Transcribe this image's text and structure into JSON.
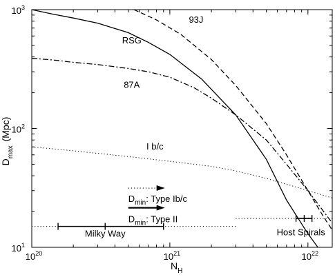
{
  "chart_data": {
    "type": "line",
    "xscale": "log",
    "yscale": "log",
    "xlim": [
      1e+20,
      1.5e+22
    ],
    "ylim": [
      10,
      1000
    ],
    "xlabel": "N",
    "xlabel_sub": "H",
    "ylabel_pre": "D",
    "ylabel_sub": "max",
    "ylabel_post": "(Mpc)",
    "x_ticks": [
      {
        "value": 1e+20,
        "base": "10",
        "exp": "20"
      },
      {
        "value": 1e+21,
        "base": "10",
        "exp": "21"
      },
      {
        "value": 1e+22,
        "base": "10",
        "exp": "22"
      }
    ],
    "y_ticks": [
      {
        "value": 10,
        "base": "10",
        "exp": "1"
      },
      {
        "value": 100,
        "base": "10",
        "exp": "2"
      },
      {
        "value": 1000,
        "base": "10",
        "exp": "3"
      }
    ],
    "series": [
      {
        "name": "RSG",
        "dash": "solid",
        "color": "#000000",
        "points": [
          [
            1e+20,
            1000
          ],
          [
            1.4e+20,
            920
          ],
          [
            2e+20,
            850
          ],
          [
            3e+20,
            770
          ],
          [
            5e+20,
            640
          ],
          [
            7e+20,
            530
          ],
          [
            1e+21,
            420
          ],
          [
            1.7e+21,
            260
          ],
          [
            3e+21,
            130
          ],
          [
            5e+21,
            55
          ],
          [
            7e+21,
            25
          ],
          [
            1e+22,
            13
          ],
          [
            1.18e+22,
            10
          ]
        ]
      },
      {
        "name": "93J",
        "dash": "dashed",
        "color": "#000000",
        "points": [
          [
            5.5e+20,
            1000
          ],
          [
            8e+20,
            820
          ],
          [
            1.2e+21,
            620
          ],
          [
            2e+21,
            380
          ],
          [
            3e+21,
            230
          ],
          [
            5e+21,
            110
          ],
          [
            7e+21,
            60
          ],
          [
            1e+22,
            30
          ],
          [
            1.3e+22,
            18
          ],
          [
            1.5e+22,
            14
          ]
        ]
      },
      {
        "name": "87A",
        "dash": "dashdot",
        "color": "#000000",
        "points": [
          [
            1e+20,
            390
          ],
          [
            1.5e+20,
            375
          ],
          [
            2e+20,
            360
          ],
          [
            3e+20,
            345
          ],
          [
            5e+20,
            320
          ],
          [
            7e+20,
            300
          ],
          [
            1e+21,
            270
          ],
          [
            1.5e+21,
            220
          ],
          [
            2e+21,
            180
          ],
          [
            3e+21,
            130
          ],
          [
            5e+21,
            80
          ],
          [
            7e+21,
            50
          ],
          [
            1e+22,
            30
          ],
          [
            1.3e+22,
            20
          ],
          [
            1.5e+22,
            16
          ]
        ]
      },
      {
        "name": "I b/c",
        "dash": "dotted",
        "color": "#000000",
        "points": [
          [
            1e+20,
            70
          ],
          [
            2e+20,
            65
          ],
          [
            5e+20,
            58
          ],
          [
            1e+21,
            53
          ],
          [
            2e+21,
            48
          ],
          [
            3e+21,
            44
          ],
          [
            5e+21,
            38
          ],
          [
            7e+21,
            34
          ],
          [
            1e+22,
            30
          ],
          [
            1.5e+22,
            26
          ]
        ]
      }
    ],
    "curve_labels": [
      {
        "text": "93J",
        "x": 1.55e+21,
        "y": 820
      },
      {
        "text": "RSG",
        "x": 5.3e+20,
        "y": 550
      },
      {
        "text": "87A",
        "x": 5.3e+20,
        "y": 232
      },
      {
        "text": "I b/c",
        "x": 7.8e+20,
        "y": 70
      }
    ],
    "legend": [
      {
        "pre": "D",
        "sub": "min",
        "post": ": Type Ib/c",
        "line": "dotted",
        "x1": 5e+20,
        "x2": 9.2e+20,
        "y": 31.5,
        "label_x": 5e+20,
        "label_y": 25.5
      },
      {
        "pre": "D",
        "sub": "min",
        "post": ": Type II",
        "line": "solid",
        "x1": 5e+20,
        "x2": 9.2e+20,
        "y": 21.5,
        "label_x": 5e+20,
        "label_y": 17.2
      }
    ],
    "ranges": [
      {
        "name": "Milky Way",
        "solid_from": 1.55e+20,
        "solid_to": 9e+20,
        "mid": 3.4e+20,
        "y": 15,
        "dotted_from": 1e+20,
        "dotted_to": 3e+21,
        "label_x": 3.4e+20,
        "label_y": 13
      },
      {
        "name": "Host Spirals",
        "solid_from": 8.2e+21,
        "solid_to": 1.07e+22,
        "mid": 9.4e+21,
        "y": 17.5,
        "dotted_from": 3e+21,
        "dotted_to": 1.5e+22,
        "label_x": 8.9e+21,
        "label_y": 13.3
      }
    ]
  }
}
